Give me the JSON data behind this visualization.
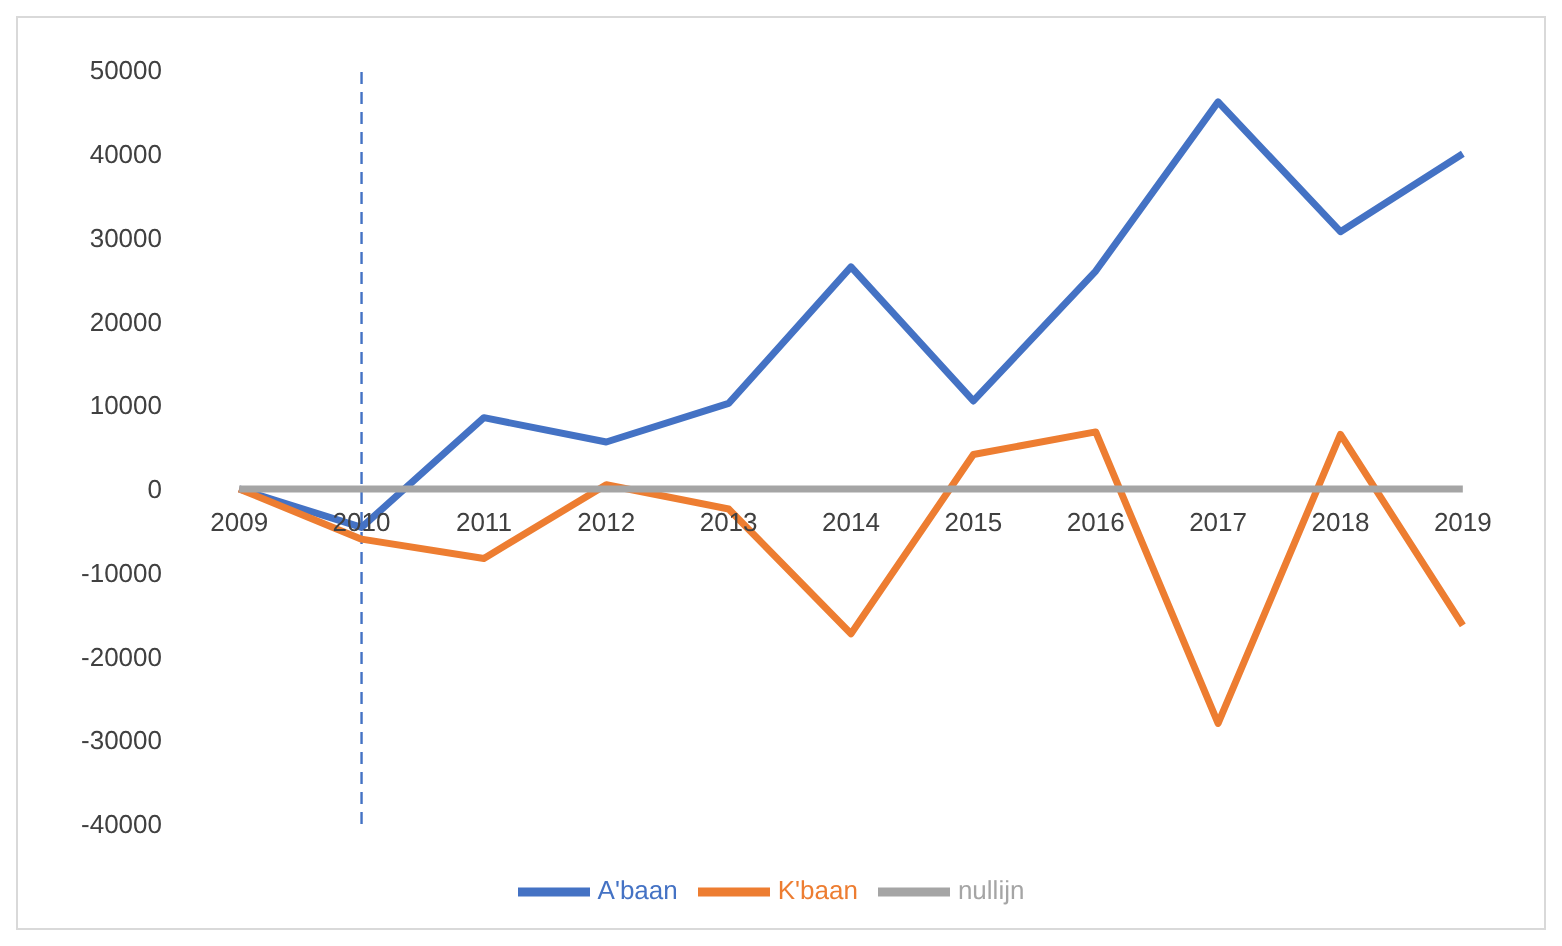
{
  "chart_data": {
    "type": "line",
    "categories": [
      "2009",
      "2010",
      "2011",
      "2012",
      "2013",
      "2014",
      "2015",
      "2016",
      "2017",
      "2018",
      "2019"
    ],
    "series": [
      {
        "name": "A'baan",
        "color": "#4472c4",
        "values": [
          0,
          -4600,
          8500,
          5600,
          10200,
          26500,
          10500,
          26000,
          46200,
          30700,
          40000
        ]
      },
      {
        "name": "K'baan",
        "color": "#ed7d31",
        "values": [
          0,
          -6000,
          -8300,
          500,
          -2400,
          -17300,
          4100,
          6800,
          -28000,
          6500,
          -16300
        ]
      },
      {
        "name": "nullijn",
        "color": "#a5a5a5",
        "values": [
          0,
          0,
          0,
          0,
          0,
          0,
          0,
          0,
          0,
          0,
          0
        ]
      }
    ],
    "ylim": [
      -40000,
      50000
    ],
    "yticks": [
      -40000,
      -30000,
      -20000,
      -10000,
      0,
      10000,
      20000,
      30000,
      40000,
      50000
    ],
    "ref_lines": [
      {
        "axis": "x",
        "value": "2010",
        "color": "#4472c4",
        "line_style": "dashed"
      }
    ],
    "grid": false,
    "legend": "bottom",
    "marker": "none",
    "line_style": "solid"
  }
}
